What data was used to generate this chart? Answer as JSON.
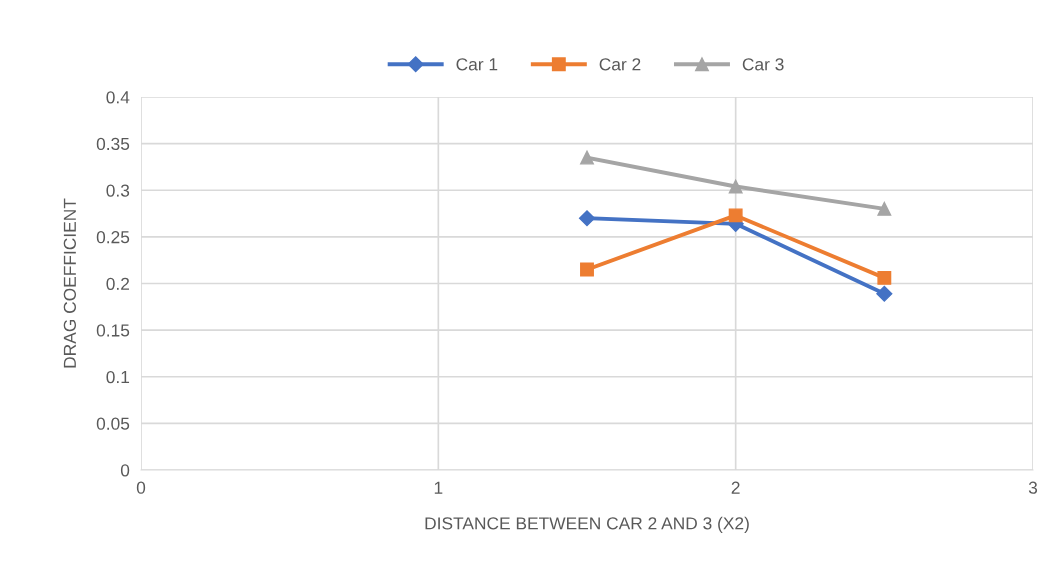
{
  "chart_data": {
    "type": "line",
    "xlabel": "DISTANCE BETWEEN CAR 2 AND 3 (X2)",
    "ylabel": "DRAG COEFFICIENT",
    "x": [
      1.5,
      2,
      2.5
    ],
    "series": [
      {
        "name": "Car 1",
        "color": "#4472c4",
        "marker": "diamond",
        "values": [
          0.27,
          0.264,
          0.189
        ]
      },
      {
        "name": "Car 2",
        "color": "#ed7d31",
        "marker": "square",
        "values": [
          0.215,
          0.273,
          0.206
        ]
      },
      {
        "name": "Car 3",
        "color": "#a5a5a5",
        "marker": "triangle",
        "values": [
          0.335,
          0.304,
          0.28
        ]
      }
    ],
    "xlim": [
      0,
      3
    ],
    "xticks": [
      0,
      1,
      2,
      3
    ],
    "ylim": [
      0,
      0.4
    ],
    "yticks": [
      0,
      0.05,
      0.1,
      0.15,
      0.2,
      0.25,
      0.3,
      0.35,
      0.4
    ],
    "grid": true,
    "legend": "top",
    "line_style": "solid"
  }
}
